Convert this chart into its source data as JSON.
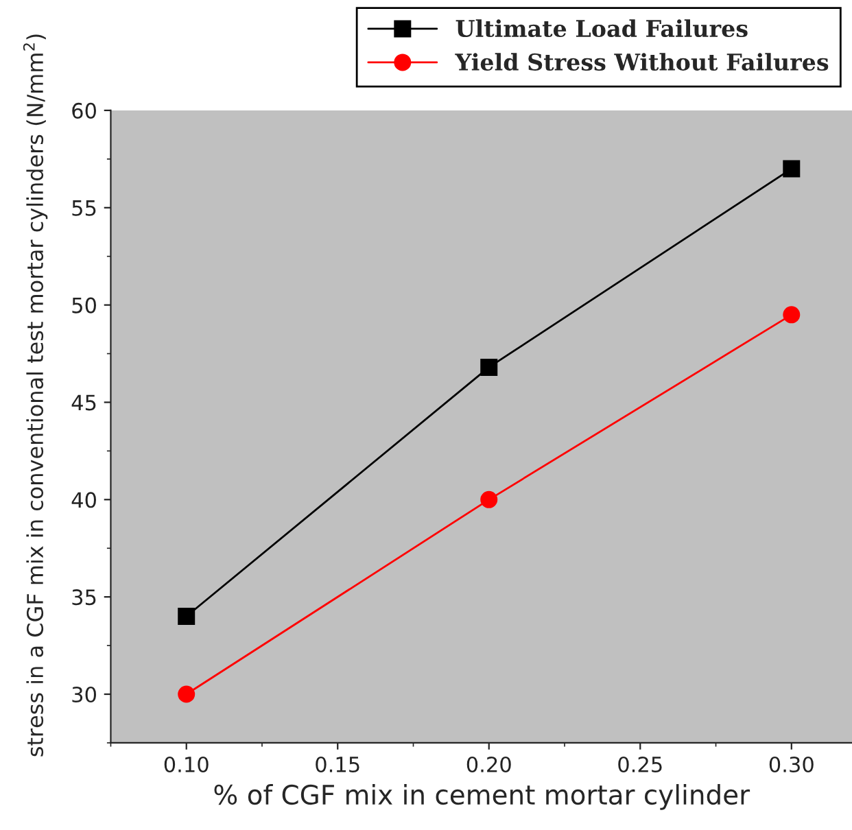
{
  "chart_data": {
    "type": "line",
    "xlabel": "% of CGF mix in cement mortar cylinder",
    "ylabel": "stress in a CGF mix in conventional test mortar cylinders (N/mm$^{2}$)",
    "x": [
      0.1,
      0.2,
      0.3
    ],
    "series": [
      {
        "name": "Ultimate Load Failures",
        "color": "#000000",
        "marker": "square",
        "values": [
          34,
          46.8,
          57
        ]
      },
      {
        "name": "Yield Stress Without Failures",
        "color": "#ff0000",
        "marker": "circle",
        "values": [
          30,
          40,
          49.5
        ]
      }
    ],
    "xlim": [
      0.075,
      0.32
    ],
    "xticks": [
      {
        "value": 0.1,
        "label": "0.10"
      },
      0.15,
      {
        "value": 0.2,
        "label": "0.20"
      },
      0.25,
      {
        "value": 0.3,
        "label": "0.30"
      }
    ],
    "ylim": [
      27.5,
      60
    ],
    "yticks": [
      30,
      35,
      40,
      45,
      50,
      55,
      60
    ],
    "grid": false,
    "legend": "top right",
    "line_style": "solid"
  }
}
